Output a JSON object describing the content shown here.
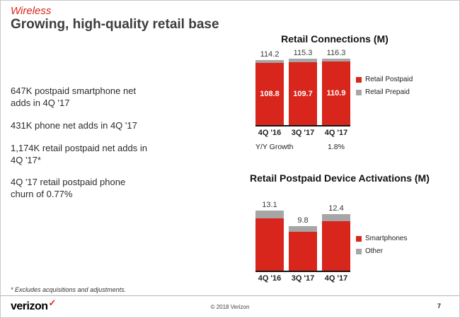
{
  "slide": {
    "kicker": "Wireless",
    "title": "Growing, high-quality retail base",
    "bullets": [
      "647K postpaid smartphone net\nadds in 4Q '17",
      "431K phone net adds in 4Q '17",
      "1,174K retail postpaid net adds in\n4Q '17*",
      "4Q '17 retail postpaid phone\nchurn of 0.77%"
    ],
    "footnote": "* Excludes acquisitions and adjustments."
  },
  "footer": {
    "logo_text": "verizon",
    "logo_check": "✓",
    "copyright": "© 2018 Verizon",
    "page_number": "7"
  },
  "colors": {
    "verizon_red": "#d9261c",
    "segment_gray": "#a6a6a6"
  },
  "chart_data": [
    {
      "type": "bar",
      "title": "Retail Connections (M)",
      "categories": [
        "4Q '16",
        "3Q '17",
        "4Q '17"
      ],
      "totals": [
        114.2,
        115.3,
        116.3
      ],
      "series": [
        {
          "name": "Retail Postpaid",
          "color": "#d9261c",
          "values": [
            108.8,
            109.7,
            110.9
          ]
        },
        {
          "name": "Retail Prepaid",
          "color": "#a6a6a6",
          "values": [
            5.4,
            5.6,
            5.4
          ]
        }
      ],
      "inside_labels": [
        "108.8",
        "109.7",
        "110.9"
      ],
      "growth_row": [
        "Y/Y Growth",
        "",
        "1.8%"
      ],
      "legend": [
        "Retail Postpaid",
        "Retail Prepaid"
      ],
      "ylim": [
        0,
        120
      ],
      "legend_position": "right",
      "grid": false
    },
    {
      "type": "bar",
      "title": "Retail Postpaid Device Activations (M)",
      "categories": [
        "4Q '16",
        "3Q '17",
        "4Q '17"
      ],
      "totals": [
        13.1,
        9.8,
        12.4
      ],
      "series": [
        {
          "name": "Smartphones",
          "color": "#d9261c",
          "values": [
            11.4,
            8.5,
            10.8
          ]
        },
        {
          "name": "Other",
          "color": "#a6a6a6",
          "values": [
            1.7,
            1.3,
            1.6
          ]
        }
      ],
      "legend": [
        "Smartphones",
        "Other"
      ],
      "ylim": [
        0,
        14
      ],
      "legend_position": "right",
      "grid": false
    }
  ]
}
